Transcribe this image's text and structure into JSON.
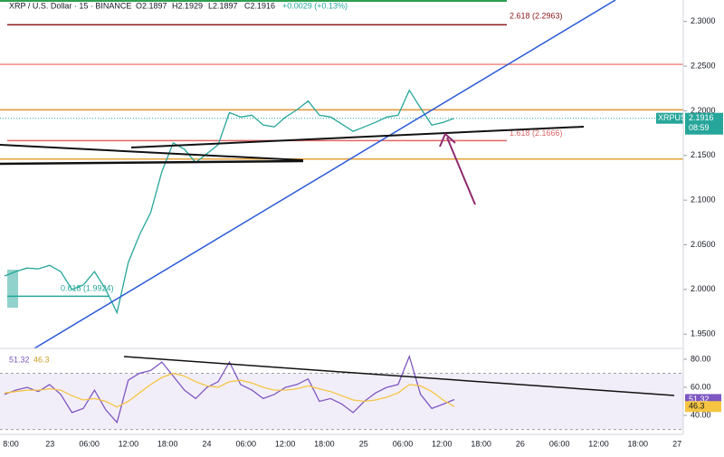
{
  "chart_data": [
    {
      "type": "line",
      "title": "XRP / U.S. Dollar · 15 · BINANCE",
      "quote": [
        "O2.1897",
        "H2.1929",
        "L2.1897",
        "C2.1916",
        "+0.0029 (+0.13%)"
      ],
      "color": "#26a69a",
      "values": [
        2.015,
        2.02,
        2.024,
        2.023,
        2.027,
        2.02,
        2.0,
        2.005,
        2.02,
        2.0,
        1.974,
        2.03,
        2.061,
        2.086,
        2.132,
        2.164,
        2.157,
        2.142,
        2.152,
        2.162,
        2.198,
        2.193,
        2.195,
        2.184,
        2.182,
        2.193,
        2.201,
        2.211,
        2.195,
        2.193,
        2.185,
        2.177,
        2.182,
        2.187,
        2.193,
        2.195,
        2.223,
        2.203,
        2.184,
        2.187,
        2.1916
      ],
      "ylim": [
        1.934,
        2.324
      ],
      "yticks": [
        {
          "value": 2.3,
          "label": "2.3000"
        },
        {
          "value": 2.25,
          "label": "2.2500"
        },
        {
          "value": 2.2,
          "label": "2.2000"
        },
        {
          "value": 2.15,
          "label": "2.1500"
        },
        {
          "value": 2.1,
          "label": "2.1000"
        },
        {
          "value": 2.05,
          "label": "2.0500"
        },
        {
          "value": 2.0,
          "label": "2.0000"
        },
        {
          "value": 1.95,
          "label": "1.9500"
        }
      ],
      "xticks": [
        "8:00",
        "23",
        "06:00",
        "12:00",
        "18:00",
        "24",
        "06:00",
        "12:00",
        "18:00",
        "25",
        "06:00",
        "12:00",
        "18:00",
        "26",
        "06:00",
        "12:00",
        "18:00",
        "27"
      ],
      "levels": [
        {
          "value": 2.2963,
          "label": "2.618 (2.2963)",
          "color": "#8b1a1a"
        },
        {
          "value": 2.252,
          "color": "#f28b82"
        },
        {
          "value": 2.201,
          "color": "#e69138"
        },
        {
          "value": 2.1666,
          "label": "1.618 (2.1666)",
          "color": "#e06666"
        },
        {
          "value": 2.146,
          "color": "#e6a23c"
        },
        {
          "value": 1.9924,
          "label": "0.618 (1.9924)",
          "color": "#26a69a"
        }
      ],
      "price_tag": {
        "symbol": "XRPUSD",
        "value": 2.1916,
        "countdown": "08:59"
      }
    },
    {
      "type": "line",
      "series": [
        {
          "color": "#7e57c2",
          "values": [
            55,
            58,
            60,
            57,
            62,
            55,
            42,
            45,
            58,
            44,
            35,
            65,
            70,
            72,
            78,
            68,
            58,
            52,
            60,
            64,
            78,
            62,
            58,
            52,
            55,
            60,
            62,
            66,
            50,
            52,
            48,
            42,
            50,
            56,
            60,
            62,
            82,
            55,
            45,
            48,
            51.32
          ]
        },
        {
          "color": "#f5c542",
          "values": [
            56,
            57,
            58,
            58,
            59,
            58,
            54,
            51,
            52,
            50,
            46,
            50,
            56,
            62,
            67,
            70,
            68,
            64,
            61,
            60,
            64,
            65,
            63,
            60,
            58,
            58,
            59,
            61,
            59,
            57,
            54,
            51,
            50,
            51,
            53,
            56,
            62,
            61,
            57,
            51,
            46.3
          ]
        }
      ],
      "ylim": [
        26.5,
        87.7
      ],
      "yticks": [
        {
          "value": 80,
          "label": "80.00"
        },
        {
          "value": 60,
          "label": "60.00"
        },
        {
          "value": 40,
          "label": "40.00"
        }
      ],
      "band": [
        30,
        70
      ]
    }
  ]
}
